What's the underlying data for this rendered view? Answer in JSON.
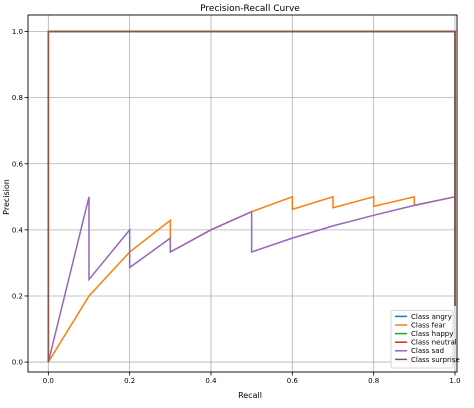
{
  "chart_data": {
    "type": "line",
    "title": "Precision-Recall Curve",
    "xlabel": "Recall",
    "ylabel": "Precision",
    "xlim": [
      -0.05,
      1.005
    ],
    "ylim": [
      -0.03,
      1.05
    ],
    "xticks": [
      0.0,
      0.2,
      0.4,
      0.6,
      0.8,
      1.0
    ],
    "xtick_labels": [
      "0.0",
      "0.2",
      "0.4",
      "0.6",
      "0.8",
      "1.0"
    ],
    "yticks": [
      0.0,
      0.2,
      0.4,
      0.6,
      0.8,
      1.0
    ],
    "ytick_labels": [
      "0.0",
      "0.2",
      "0.4",
      "0.6",
      "0.8",
      "1.0"
    ],
    "grid": true,
    "legend_position": "lower-right",
    "series": [
      {
        "name": "Class angry",
        "color": "#1f77b4",
        "x": [
          0.0,
          0.0,
          1.0,
          1.0
        ],
        "y": [
          0.0,
          1.0,
          1.0,
          0.17
        ]
      },
      {
        "name": "Class fear",
        "color": "#ff7f0e",
        "x": [
          0.0,
          0.1,
          0.2,
          0.3,
          0.3,
          0.4,
          0.5,
          0.6,
          0.6,
          0.7,
          0.7,
          0.8,
          0.8,
          0.9,
          0.9,
          1.0
        ],
        "y": [
          0.0,
          0.2,
          0.333,
          0.429,
          0.333,
          0.4,
          0.455,
          0.5,
          0.462,
          0.5,
          0.467,
          0.5,
          0.471,
          0.5,
          0.474,
          0.5
        ]
      },
      {
        "name": "Class happy",
        "color": "#2ca02c",
        "x": [
          0.0,
          0.0,
          1.0,
          1.0
        ],
        "y": [
          0.0,
          1.0,
          1.0,
          0.17
        ]
      },
      {
        "name": "Class neutral",
        "color": "#d62728",
        "x": [
          0.0,
          0.0,
          1.0,
          1.0
        ],
        "y": [
          0.0,
          1.0,
          1.0,
          0.17
        ]
      },
      {
        "name": "Class sad",
        "color": "#9467bd",
        "x": [
          0.0,
          0.1,
          0.1,
          0.2,
          0.2,
          0.3,
          0.3,
          0.4,
          0.5,
          0.5,
          0.6,
          0.7,
          0.8,
          0.9,
          1.0
        ],
        "y": [
          0.0,
          0.5,
          0.25,
          0.4,
          0.286,
          0.375,
          0.333,
          0.4,
          0.455,
          0.333,
          0.375,
          0.412,
          0.444,
          0.474,
          0.5
        ]
      },
      {
        "name": "Class surprise",
        "color": "#8c564b",
        "x": [
          0.0,
          0.0,
          1.0,
          1.0
        ],
        "y": [
          0.0,
          1.0,
          1.0,
          0.17
        ]
      }
    ]
  }
}
